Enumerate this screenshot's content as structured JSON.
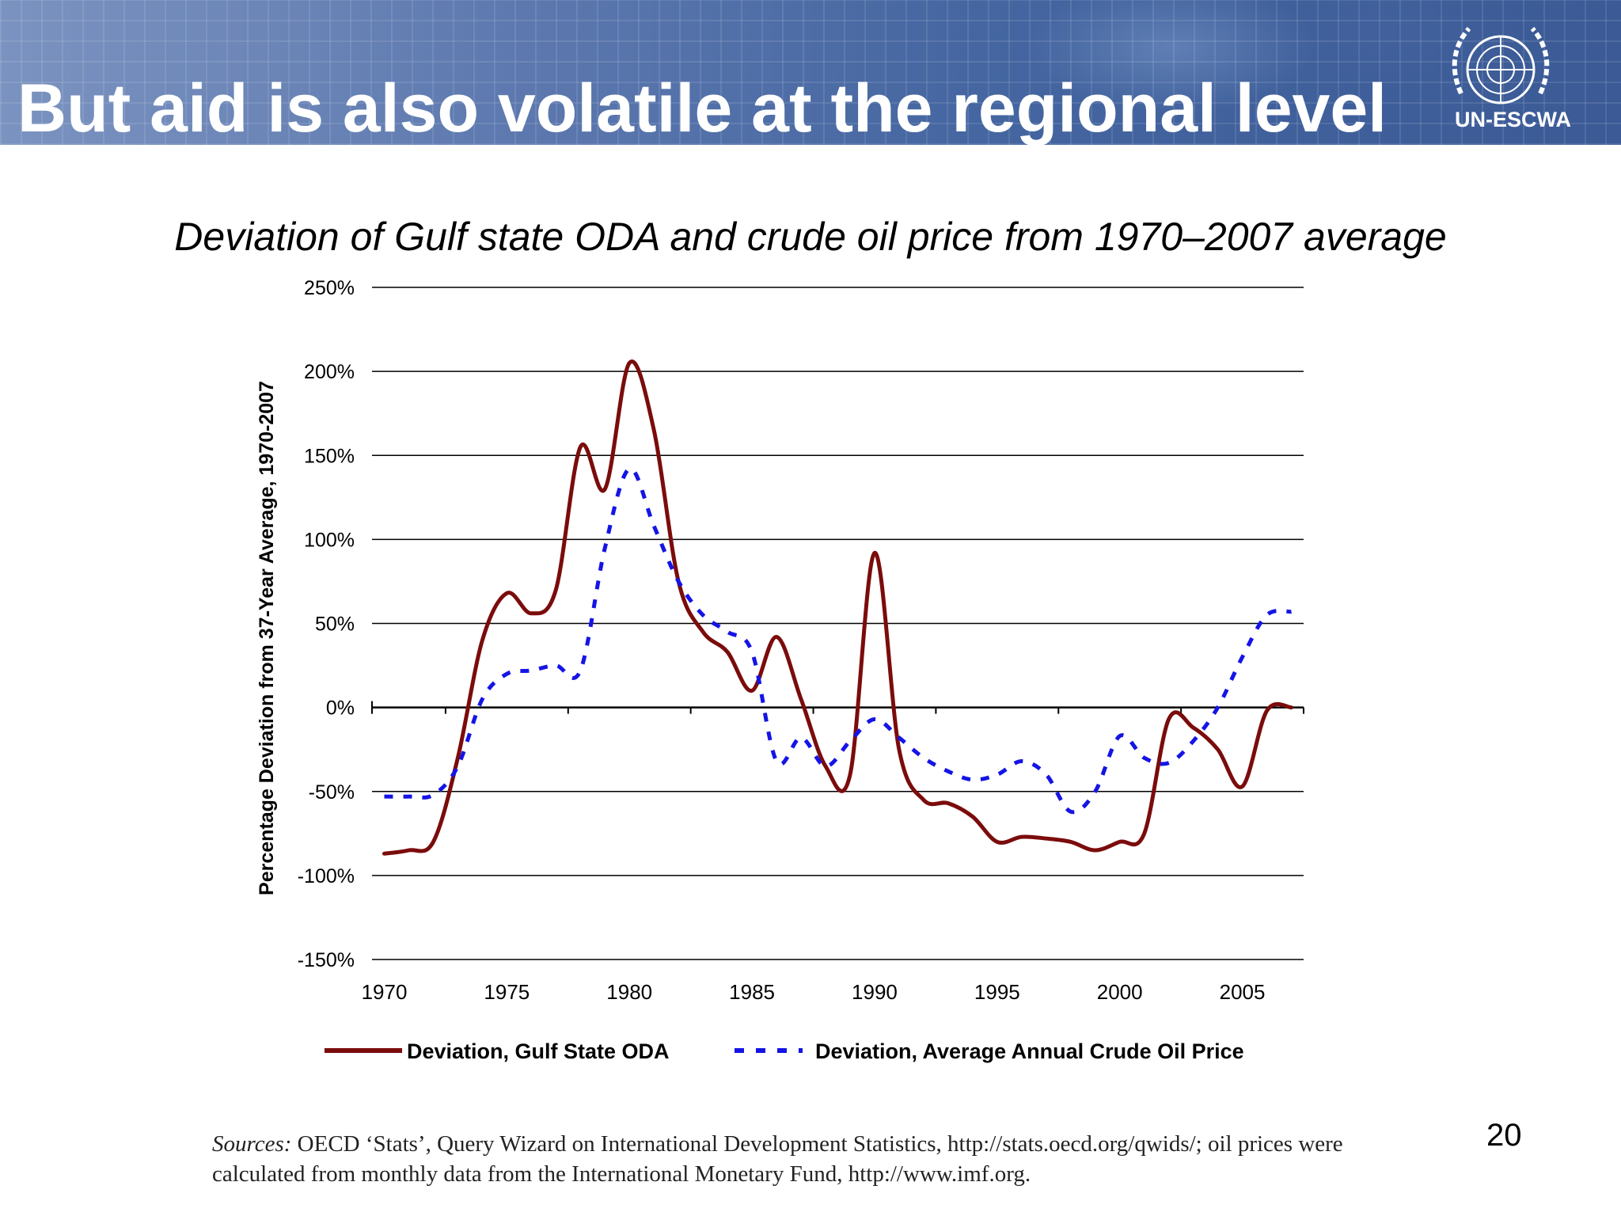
{
  "slide": {
    "title": "But aid is also volatile at the regional level",
    "logo_text": "UN-ESCWA",
    "page_number": "20"
  },
  "chart_data": {
    "type": "line",
    "title": "Deviation of Gulf state ODA and crude oil price from 1970–2007 average",
    "xlabel": "",
    "ylabel": "Percentage Deviation from 37-Year Average, 1970-2007",
    "xlim": [
      1969.5,
      2007.5
    ],
    "ylim": [
      -150,
      250
    ],
    "x_ticks": [
      1970,
      1975,
      1980,
      1985,
      1990,
      1995,
      2000,
      2005
    ],
    "x_tick_labels": [
      "1970",
      "1975",
      "1980",
      "1985",
      "1990",
      "1995",
      "2000",
      "2005"
    ],
    "y_ticks": [
      250,
      200,
      150,
      100,
      50,
      0,
      -50,
      -100,
      -150
    ],
    "y_tick_labels": [
      "250%",
      "200%",
      "150%",
      "100%",
      "50%",
      "0%",
      "-50%",
      "-100%",
      "-150%"
    ],
    "grid": true,
    "legend_position": "bottom",
    "series": [
      {
        "name": "Deviation, Gulf State ODA",
        "color": "#7b0c0c",
        "style": "solid",
        "x": [
          1970,
          1971,
          1972,
          1973,
          1974,
          1975,
          1976,
          1977,
          1978,
          1979,
          1980,
          1981,
          1982,
          1983,
          1984,
          1985,
          1986,
          1987,
          1988,
          1989,
          1990,
          1991,
          1992,
          1993,
          1994,
          1995,
          1996,
          1997,
          1998,
          1999,
          2000,
          2001,
          2002,
          2003,
          2004,
          2005,
          2006,
          2007
        ],
        "values": [
          -87,
          -85,
          -80,
          -30,
          40,
          68,
          56,
          70,
          155,
          130,
          205,
          165,
          75,
          45,
          33,
          10,
          42,
          5,
          -35,
          -40,
          92,
          -25,
          -55,
          -57,
          -65,
          -80,
          -77,
          -78,
          -80,
          -85,
          -80,
          -75,
          -7,
          -12,
          -25,
          -47,
          -2,
          0
        ]
      },
      {
        "name": "Deviation, Average Annual Crude Oil Price",
        "color": "#1414e6",
        "style": "dashed",
        "x": [
          1970,
          1971,
          1972,
          1973,
          1974,
          1975,
          1976,
          1977,
          1978,
          1979,
          1980,
          1981,
          1982,
          1983,
          1984,
          1985,
          1986,
          1987,
          1988,
          1989,
          1990,
          1991,
          1992,
          1993,
          1994,
          1995,
          1996,
          1997,
          1998,
          1999,
          2000,
          2001,
          2002,
          2003,
          2004,
          2005,
          2006,
          2007
        ],
        "values": [
          -53,
          -53,
          -52,
          -35,
          5,
          20,
          22,
          25,
          22,
          95,
          142,
          108,
          75,
          55,
          45,
          33,
          -32,
          -18,
          -35,
          -20,
          -7,
          -18,
          -30,
          -38,
          -43,
          -40,
          -32,
          -40,
          -62,
          -50,
          -17,
          -30,
          -33,
          -20,
          0,
          30,
          55,
          57
        ]
      }
    ]
  },
  "sources": {
    "lead": "Sources:",
    "text": " OECD ‘Stats’, Query Wizard on International Development Statistics, http://stats.oecd.org/qwids/; oil prices were calculated from monthly data from the International Monetary Fund, http://www.imf.org."
  }
}
